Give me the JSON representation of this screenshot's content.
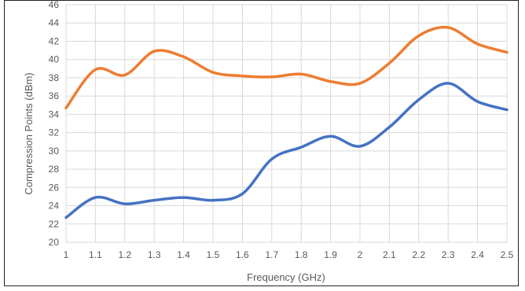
{
  "chart_data": {
    "type": "line",
    "title": "",
    "xlabel": "Frequency (GHz)",
    "ylabel": "Compression Points (dBm)",
    "xlim": [
      1,
      2.5
    ],
    "ylim": [
      20,
      46
    ],
    "x_ticks": [
      "1",
      "1.1",
      "1.2",
      "1.3",
      "1.4",
      "1.5",
      "1.6",
      "1.7",
      "1.8",
      "1.9",
      "2",
      "2.1",
      "2.2",
      "2.3",
      "2.4",
      "2.5"
    ],
    "y_ticks": [
      "20",
      "22",
      "24",
      "26",
      "28",
      "30",
      "32",
      "34",
      "36",
      "38",
      "40",
      "42",
      "44",
      "46"
    ],
    "grid": true,
    "legend": "none",
    "x": [
      1,
      1.1,
      1.2,
      1.3,
      1.4,
      1.5,
      1.6,
      1.7,
      1.8,
      1.9,
      2,
      2.1,
      2.2,
      2.3,
      2.4,
      2.5
    ],
    "series": [
      {
        "color": "#ED7D31",
        "values": [
          34.7,
          38.9,
          38.3,
          40.9,
          40.3,
          38.6,
          38.2,
          38.1,
          38.4,
          37.6,
          37.4,
          39.6,
          42.6,
          43.5,
          41.7,
          40.8
        ]
      },
      {
        "color": "#4472C4",
        "values": [
          22.7,
          24.9,
          24.2,
          24.6,
          24.9,
          24.6,
          25.3,
          29.1,
          30.4,
          31.6,
          30.5,
          32.6,
          35.6,
          37.4,
          35.4,
          34.5
        ]
      }
    ]
  }
}
